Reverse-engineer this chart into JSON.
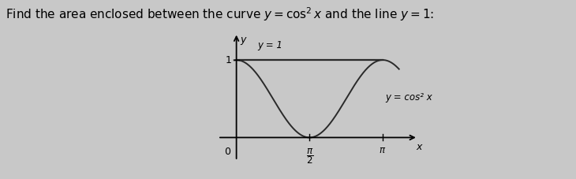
{
  "title": "Find the area enclosed between the curve $y = \\cos^2 x$ and the line $y = 1$:",
  "title_fontsize": 11,
  "background_color": "#c8c8c8",
  "curve_color": "#2a2a2a",
  "line_color": "#2a2a2a",
  "x_min": -0.5,
  "x_max": 4.2,
  "y_min": -0.35,
  "y_max": 1.45,
  "label_y1": "y = 1",
  "label_y2": "y = cos² x",
  "label_x": "x",
  "label_0": "0"
}
